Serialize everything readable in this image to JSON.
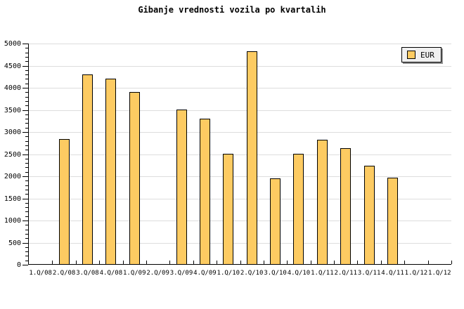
{
  "chart_data": {
    "type": "bar",
    "title": "Gibanje vrednosti vozila po kvartalih",
    "categories": [
      "1.Q/08",
      "2.Q/08",
      "3.Q/08",
      "4.Q/08",
      "1.Q/09",
      "2.Q/09",
      "3.Q/09",
      "4.Q/09",
      "1.Q/10",
      "2.Q/10",
      "3.Q/10",
      "4.Q/10",
      "1.Q/11",
      "2.Q/11",
      "3.Q/11",
      "4.Q/11",
      "1.Q/12",
      "1.Q/12"
    ],
    "series": [
      {
        "name": "EUR",
        "values": [
          null,
          2840,
          4300,
          4210,
          3900,
          null,
          3500,
          3300,
          2510,
          4820,
          1960,
          2510,
          2830,
          2640,
          2240,
          1970,
          null,
          null
        ]
      }
    ],
    "xlabel": "",
    "ylabel": "",
    "ylim": [
      0,
      5000
    ],
    "y_major_step": 500,
    "y_minor_step": 100,
    "y_tick_labels": [
      "0",
      "500",
      "1000",
      "1500",
      "2000",
      "2500",
      "3000",
      "3500",
      "4000",
      "4500",
      "5000"
    ],
    "grid": "horizontal",
    "legend": {
      "position": "top-right",
      "entries": [
        "EUR"
      ]
    },
    "colors": {
      "bar_fill": "#FDCB62",
      "bar_border": "#000000",
      "grid_line": "#DDDDDD",
      "axis_line": "#000000",
      "text": "#000000",
      "legend_bg": "#F0F0F0",
      "legend_shadow": "#909090",
      "background": "#FFFFFF"
    }
  }
}
